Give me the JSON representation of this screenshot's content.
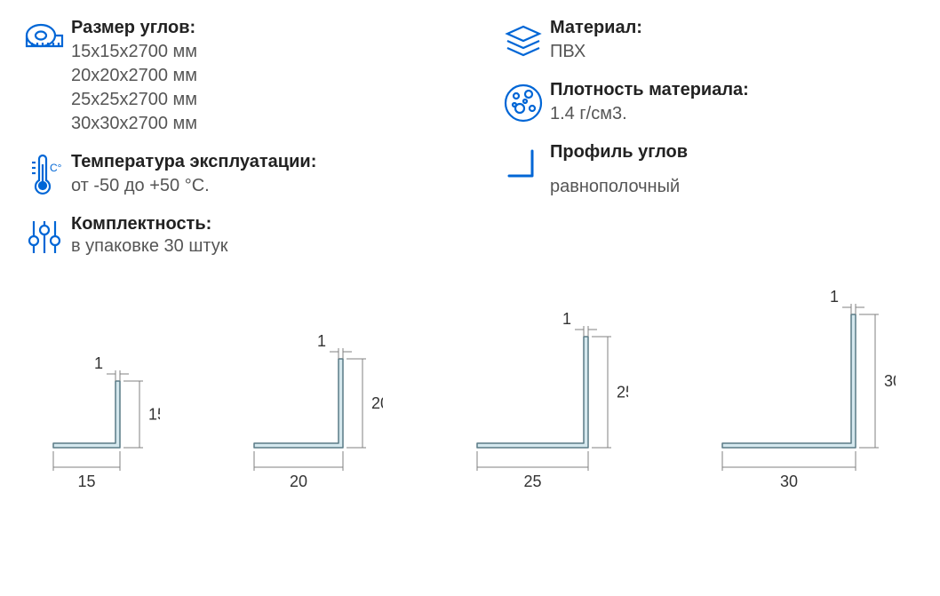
{
  "sizes": {
    "title": "Размер углов:",
    "values": [
      "15x15x2700 мм",
      "20x20x2700 мм",
      "25x25x2700 мм",
      "30x30x2700 мм"
    ]
  },
  "material": {
    "title": "Материал:",
    "value": "ПВХ"
  },
  "density": {
    "title": "Плотность материала:",
    "value": "1.4 г/см3."
  },
  "temperature": {
    "title": "Температура эксплуатации:",
    "value": "от -50 до +50 °С."
  },
  "profile": {
    "title": "Профиль углов",
    "value": "равнополочный"
  },
  "completeness": {
    "title": "Комплектность:",
    "value": "в упаковке 30 штук"
  },
  "profile_diagrams": [
    {
      "size": 15,
      "thickness": 1,
      "scale": 5.0
    },
    {
      "size": 20,
      "thickness": 1,
      "scale": 5.0
    },
    {
      "size": 25,
      "thickness": 1,
      "scale": 5.0
    },
    {
      "size": 30,
      "thickness": 1,
      "scale": 5.0
    }
  ],
  "style": {
    "icon_stroke": "#0066d6",
    "text_title_color": "#222222",
    "text_value_color": "#555555",
    "dimension_line_color": "#808080",
    "profile_fill": "#d5e8ee",
    "profile_stroke": "#5a7a85",
    "title_fontsize": 20,
    "value_fontsize": 20,
    "dim_fontsize": 18,
    "background": "#ffffff"
  }
}
